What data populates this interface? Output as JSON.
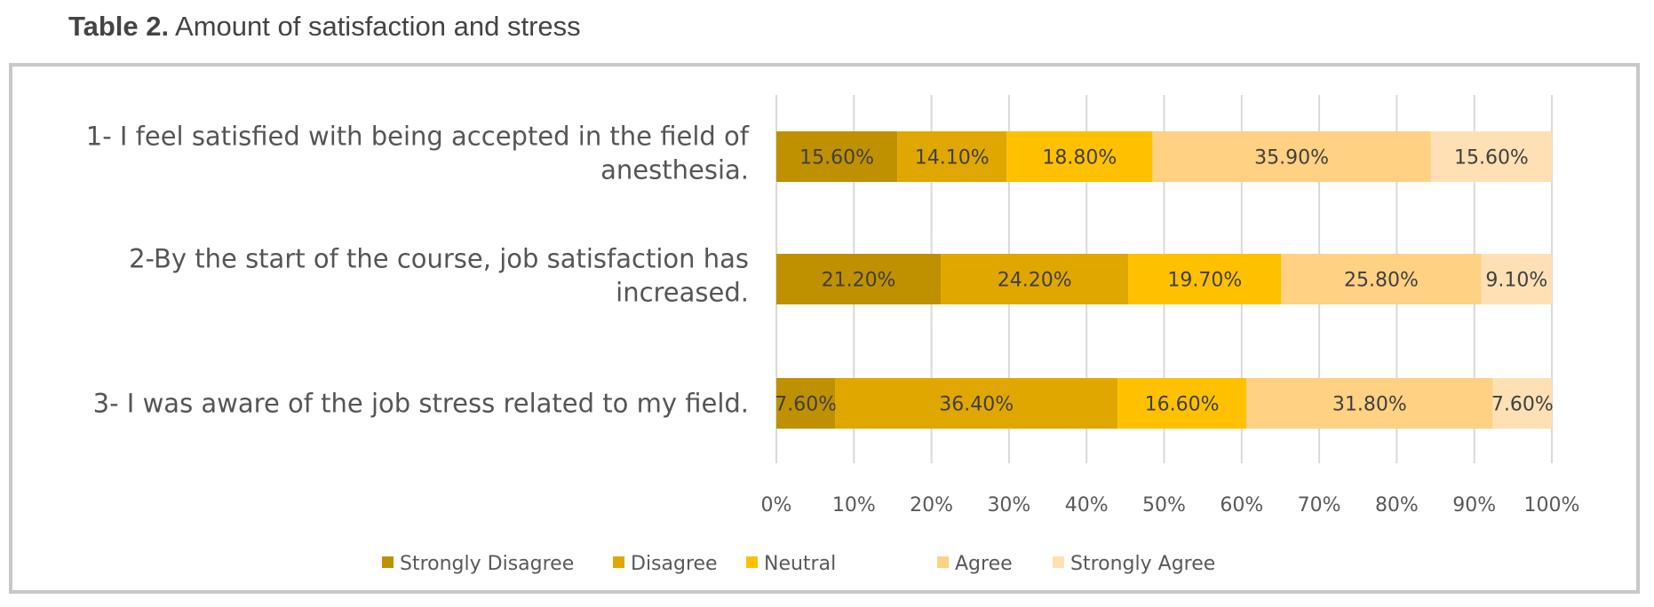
{
  "caption": {
    "label": "Table 2.",
    "text": " Amount of satisfaction and stress"
  },
  "chart_data": {
    "type": "bar",
    "orientation": "horizontal",
    "stacked": "100%",
    "categories": [
      [
        "1- I feel satisfied with being accepted in the field of",
        "anesthesia."
      ],
      [
        "2-By the start of the course, job satisfaction has",
        "increased."
      ],
      [
        "3- I was aware of the job stress related to my field."
      ]
    ],
    "series": [
      {
        "name": "Strongly Disagree",
        "color": "#BF9000",
        "values": [
          15.6,
          21.2,
          7.6
        ],
        "labels": [
          "15.60%",
          "21.20%",
          "7.60%"
        ]
      },
      {
        "name": "Disagree",
        "color": "#DFA700",
        "values": [
          14.1,
          24.2,
          36.4
        ],
        "labels": [
          "14.10%",
          "24.20%",
          "36.40%"
        ]
      },
      {
        "name": "Neutral",
        "color": "#FFC000",
        "values": [
          18.8,
          19.7,
          16.6
        ],
        "labels": [
          "18.80%",
          "19.70%",
          "16.60%"
        ]
      },
      {
        "name": "Agree",
        "color": "#FFD182",
        "values": [
          35.9,
          25.8,
          31.8
        ],
        "labels": [
          "35.90%",
          "25.80%",
          "31.80%"
        ]
      },
      {
        "name": "Strongly Agree",
        "color": "#FFE0B5",
        "values": [
          15.6,
          9.1,
          7.6
        ],
        "labels": [
          "15.60%",
          "9.10%",
          "7.60%"
        ]
      }
    ],
    "xlim": [
      0,
      100
    ],
    "xticks": [
      "0%",
      "10%",
      "20%",
      "30%",
      "40%",
      "50%",
      "60%",
      "70%",
      "80%",
      "90%",
      "100%"
    ],
    "grid": true,
    "legend": "bottom"
  }
}
